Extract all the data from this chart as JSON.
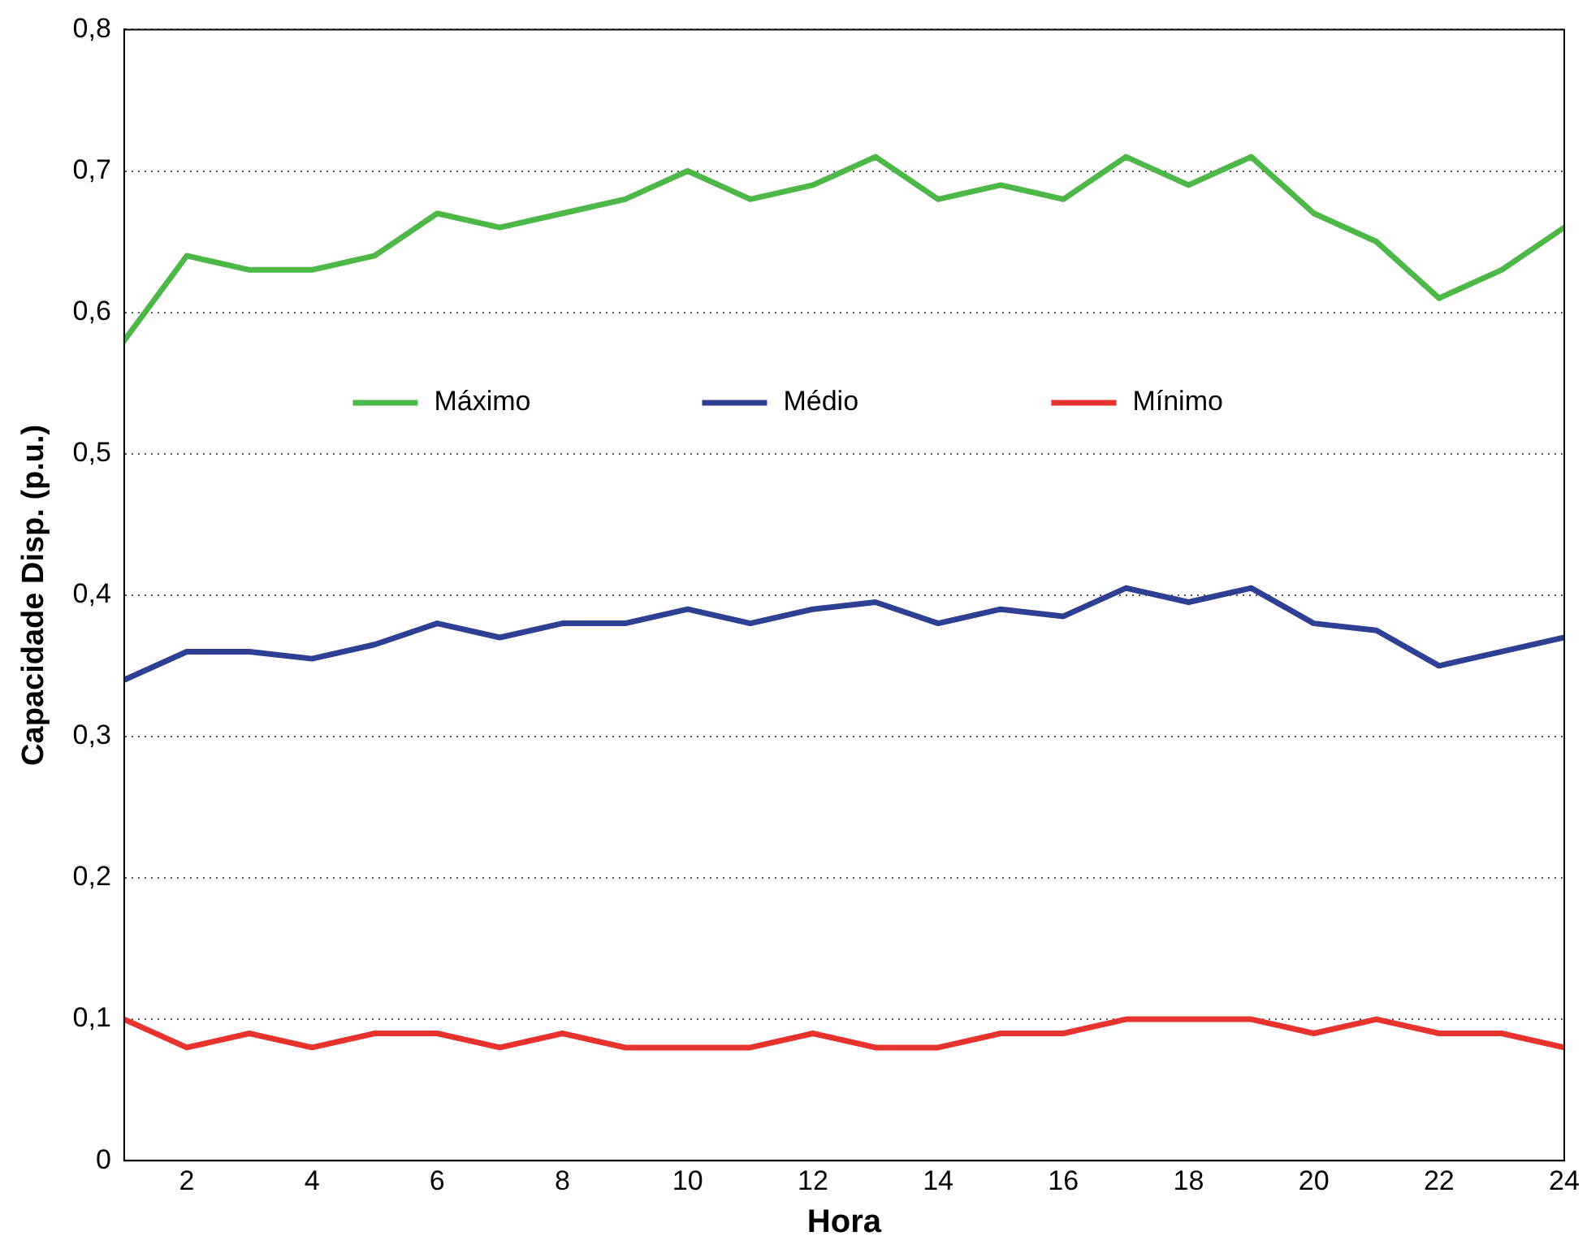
{
  "chart_data": {
    "type": "line",
    "xlabel": "Hora",
    "ylabel": "Capacidade Disp. (p.u.)",
    "x": [
      1,
      2,
      3,
      4,
      5,
      6,
      7,
      8,
      9,
      10,
      11,
      12,
      13,
      14,
      15,
      16,
      17,
      18,
      19,
      20,
      21,
      22,
      23,
      24
    ],
    "series": [
      {
        "name": "Máximo",
        "color": "#4db848",
        "values": [
          0.58,
          0.64,
          0.63,
          0.63,
          0.64,
          0.67,
          0.66,
          0.67,
          0.68,
          0.7,
          0.68,
          0.69,
          0.71,
          0.68,
          0.69,
          0.68,
          0.71,
          0.69,
          0.71,
          0.67,
          0.65,
          0.61,
          0.63,
          0.66
        ]
      },
      {
        "name": "Médio",
        "color": "#2e3f94",
        "values": [
          0.34,
          0.36,
          0.36,
          0.355,
          0.365,
          0.38,
          0.37,
          0.38,
          0.38,
          0.39,
          0.38,
          0.39,
          0.395,
          0.38,
          0.39,
          0.385,
          0.405,
          0.395,
          0.405,
          0.38,
          0.375,
          0.35,
          0.36,
          0.37
        ]
      },
      {
        "name": "Mínimo",
        "color": "#e8322e",
        "values": [
          0.1,
          0.08,
          0.09,
          0.08,
          0.09,
          0.09,
          0.08,
          0.09,
          0.08,
          0.08,
          0.08,
          0.09,
          0.08,
          0.08,
          0.09,
          0.09,
          0.1,
          0.1,
          0.1,
          0.09,
          0.1,
          0.09,
          0.09,
          0.08
        ]
      }
    ],
    "xlim": [
      1,
      24
    ],
    "xticks": [
      2,
      4,
      6,
      8,
      10,
      12,
      14,
      16,
      18,
      20,
      22,
      24
    ],
    "ylim": [
      0,
      0.8
    ],
    "yticks": [
      0,
      {
        "value": 0.1,
        "label": "0,1"
      },
      {
        "value": 0.2,
        "label": "0,2"
      },
      {
        "value": 0.3,
        "label": "0,3"
      },
      {
        "value": 0.4,
        "label": "0,4"
      },
      {
        "value": 0.5,
        "label": "0,5"
      },
      {
        "value": 0.6,
        "label": "0,6"
      },
      {
        "value": 0.7,
        "label": "0,7"
      },
      {
        "value": 0.8,
        "label": "0,8"
      }
    ],
    "grid": "y",
    "legend": "top",
    "marker": "none",
    "line_style": "solid"
  }
}
